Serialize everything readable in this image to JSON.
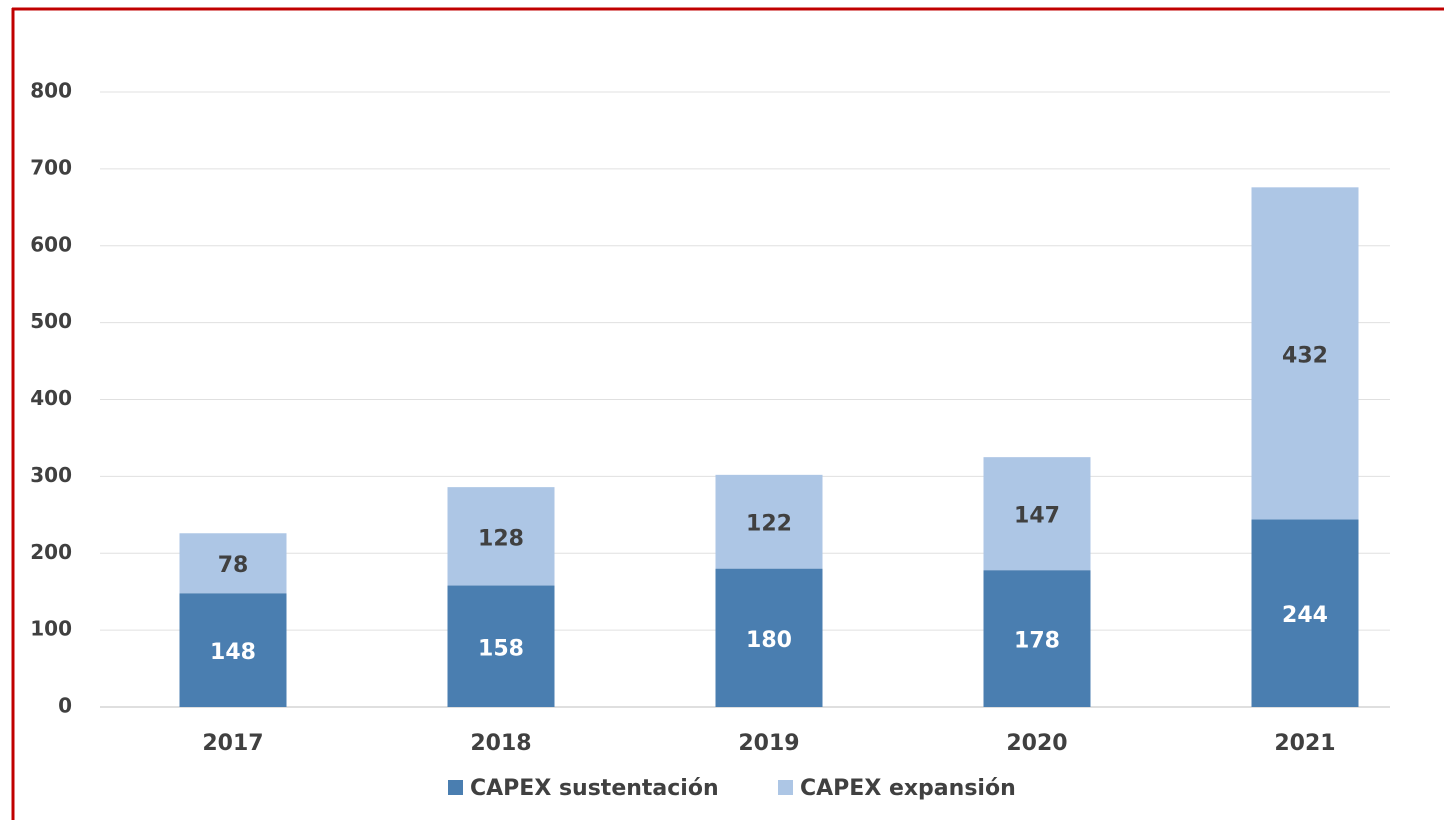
{
  "chart_data": {
    "type": "stacked_bar",
    "categories": [
      "2017",
      "2018",
      "2019",
      "2020",
      "2021"
    ],
    "series": [
      {
        "name": "CAPEX sustentación",
        "color": "#4a7eb0",
        "values": [
          148,
          158,
          180,
          178,
          244
        ]
      },
      {
        "name": "CAPEX expansión",
        "color": "#adc6e5",
        "values": [
          78,
          128,
          122,
          147,
          432
        ]
      }
    ],
    "ylim": [
      0,
      800
    ],
    "yticks": [
      0,
      100,
      200,
      300,
      400,
      500,
      600,
      700,
      800
    ],
    "grid": true,
    "legend": "bottom"
  }
}
